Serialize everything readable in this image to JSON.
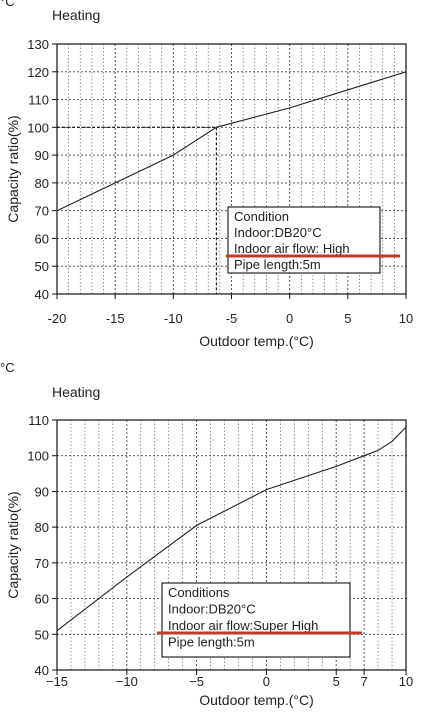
{
  "page": {
    "corner_top": "°C",
    "corner_mid": "°C"
  },
  "chart_data": [
    {
      "type": "line",
      "title": "Heating",
      "xlabel": "Outdoor temp.(°C)",
      "ylabel": "Capacity ratio(%)",
      "xlim": [
        -20,
        10
      ],
      "ylim": [
        40,
        130
      ],
      "x_ticks": [
        -20,
        -15,
        -10,
        -5,
        0,
        5,
        10
      ],
      "x_tick_labels": [
        "-20",
        "-15",
        "-10",
        "-5",
        "0",
        "5",
        "10"
      ],
      "y_ticks": [
        40,
        50,
        60,
        70,
        80,
        90,
        100,
        110,
        120,
        130
      ],
      "y_tick_labels": [
        "40",
        "50",
        "60",
        "70",
        "80",
        "90",
        "100",
        "110",
        "120",
        "130"
      ],
      "minor_x_step": 1,
      "grid": true,
      "series": [
        {
          "x": [
            -20,
            -10,
            -6.3,
            0,
            10
          ],
          "y": [
            70,
            90,
            100,
            107,
            120
          ]
        }
      ],
      "reference_point": {
        "x": -6.3,
        "y": 100
      },
      "condition_box": {
        "title": "Condition",
        "lines": [
          "Indoor:DB20°C",
          "Indoor air flow: High",
          "Pipe length:5m"
        ],
        "highlight_line": 2,
        "highlight_color": "#c0392b"
      }
    },
    {
      "type": "line",
      "title": "Heating",
      "xlabel": "Outdoor temp.(°C)",
      "ylabel": "Capacity ratio(%)",
      "xlim": [
        -15,
        10
      ],
      "ylim": [
        40,
        110
      ],
      "x_ticks": [
        -15,
        -10,
        -5,
        0,
        5,
        7,
        10
      ],
      "x_tick_labels": [
        "−15",
        "−10",
        "−5",
        "0",
        "5",
        "7",
        "10"
      ],
      "y_ticks": [
        40,
        50,
        60,
        70,
        80,
        90,
        100,
        110
      ],
      "y_tick_labels": [
        "40",
        "50",
        "60",
        "70",
        "80",
        "90",
        "100",
        "110"
      ],
      "minor_x_step": 1,
      "grid": true,
      "series": [
        {
          "x": [
            -15,
            -10,
            -5,
            0,
            5,
            7,
            8,
            9,
            10
          ],
          "y": [
            51,
            66,
            80.5,
            90.5,
            97,
            100,
            101.5,
            104,
            108
          ]
        }
      ],
      "condition_box": {
        "title": "Conditions",
        "lines": [
          "Indoor:DB20°C",
          "Indoor air flow:Super High",
          "Pipe length:5m"
        ],
        "highlight_line": 2,
        "highlight_color": "#c0392b"
      }
    }
  ]
}
